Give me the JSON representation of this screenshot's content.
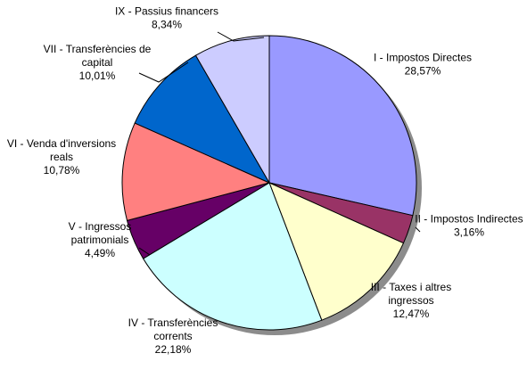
{
  "chart_data": {
    "type": "pie",
    "title": "",
    "slices": [
      {
        "label_lines": [
          "I - Impostos Directes"
        ],
        "value_text": "28,57%",
        "value": 28.57,
        "color": "#9999ff"
      },
      {
        "label_lines": [
          "II - Impostos Indirectes"
        ],
        "value_text": "3,16%",
        "value": 3.16,
        "color": "#993366"
      },
      {
        "label_lines": [
          "III - Taxes i altres",
          "ingressos"
        ],
        "value_text": "12,47%",
        "value": 12.47,
        "color": "#ffffcc"
      },
      {
        "label_lines": [
          "IV - Transferències",
          "corrents"
        ],
        "value_text": "22,18%",
        "value": 22.18,
        "color": "#ccffff"
      },
      {
        "label_lines": [
          "V - Ingressos",
          "patrimonials"
        ],
        "value_text": "4,49%",
        "value": 4.49,
        "color": "#660066"
      },
      {
        "label_lines": [
          "VI - Venda d'inversions",
          "reals"
        ],
        "value_text": "10,78%",
        "value": 10.78,
        "color": "#ff8080"
      },
      {
        "label_lines": [
          "VII - Transferències de",
          "capital"
        ],
        "value_text": "10,01%",
        "value": 10.01,
        "color": "#0066cc"
      },
      {
        "label_lines": [
          "IX - Passius financers"
        ],
        "value_text": "8,34%",
        "value": 8.34,
        "color": "#ccccff"
      }
    ]
  }
}
